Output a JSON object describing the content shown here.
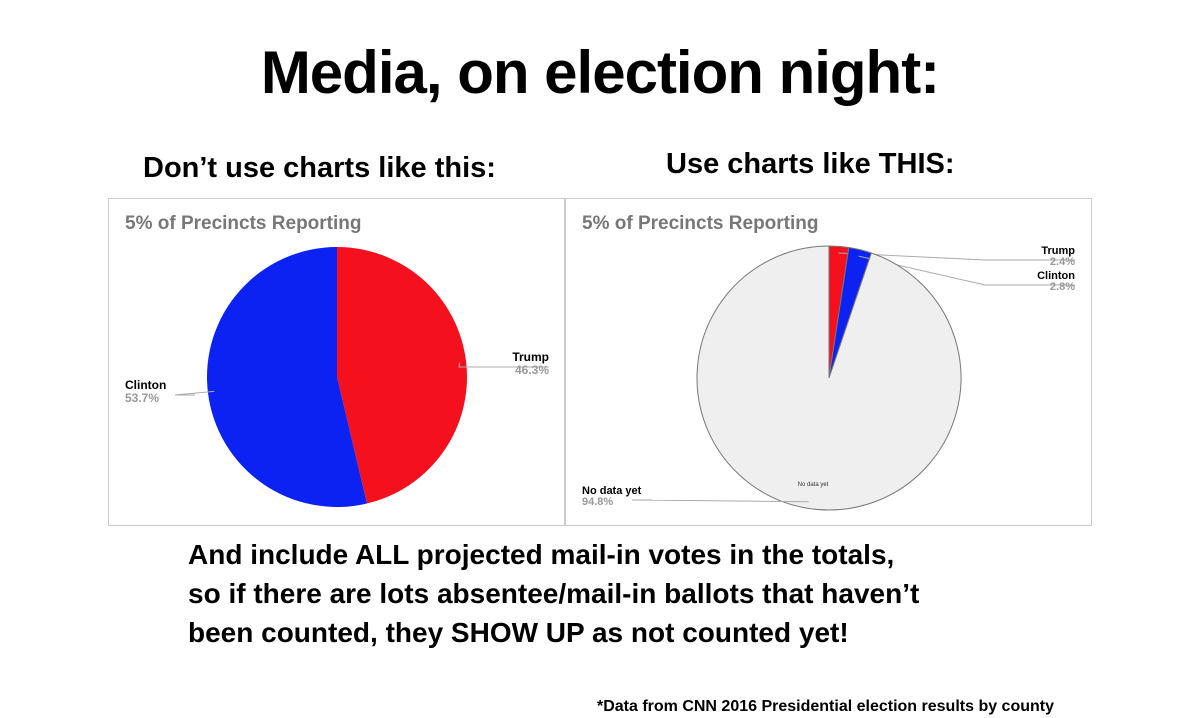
{
  "title": "Media, on election night:",
  "left_heading": "Don’t use charts like this:",
  "right_heading": "Use charts like THIS:",
  "body_lines": [
    "And include ALL projected mail-in votes in the totals,",
    "so if there are lots absentee/mail-in ballots that haven’t",
    "been counted, they SHOW UP as not counted yet!"
  ],
  "footnote": "*Data from CNN 2016 Presidential election results by county",
  "chart_data": [
    {
      "type": "pie",
      "title": "5% of Precincts Reporting",
      "slices": [
        {
          "label": "Trump",
          "value": 46.3,
          "display": "46.3%",
          "color": "#f5101e"
        },
        {
          "label": "Clinton",
          "value": 53.7,
          "display": "53.7%",
          "color": "#0c22f2"
        }
      ]
    },
    {
      "type": "pie",
      "title": "5% of Precincts Reporting",
      "inner_label": "No data yet",
      "slices": [
        {
          "label": "Trump",
          "value": 2.4,
          "display": "2.4%",
          "color": "#f5101e"
        },
        {
          "label": "Clinton",
          "value": 2.8,
          "display": "2.8%",
          "color": "#0c22f2"
        },
        {
          "label": "No data yet",
          "value": 94.8,
          "display": "94.8%",
          "color": "#efefef"
        }
      ]
    }
  ]
}
